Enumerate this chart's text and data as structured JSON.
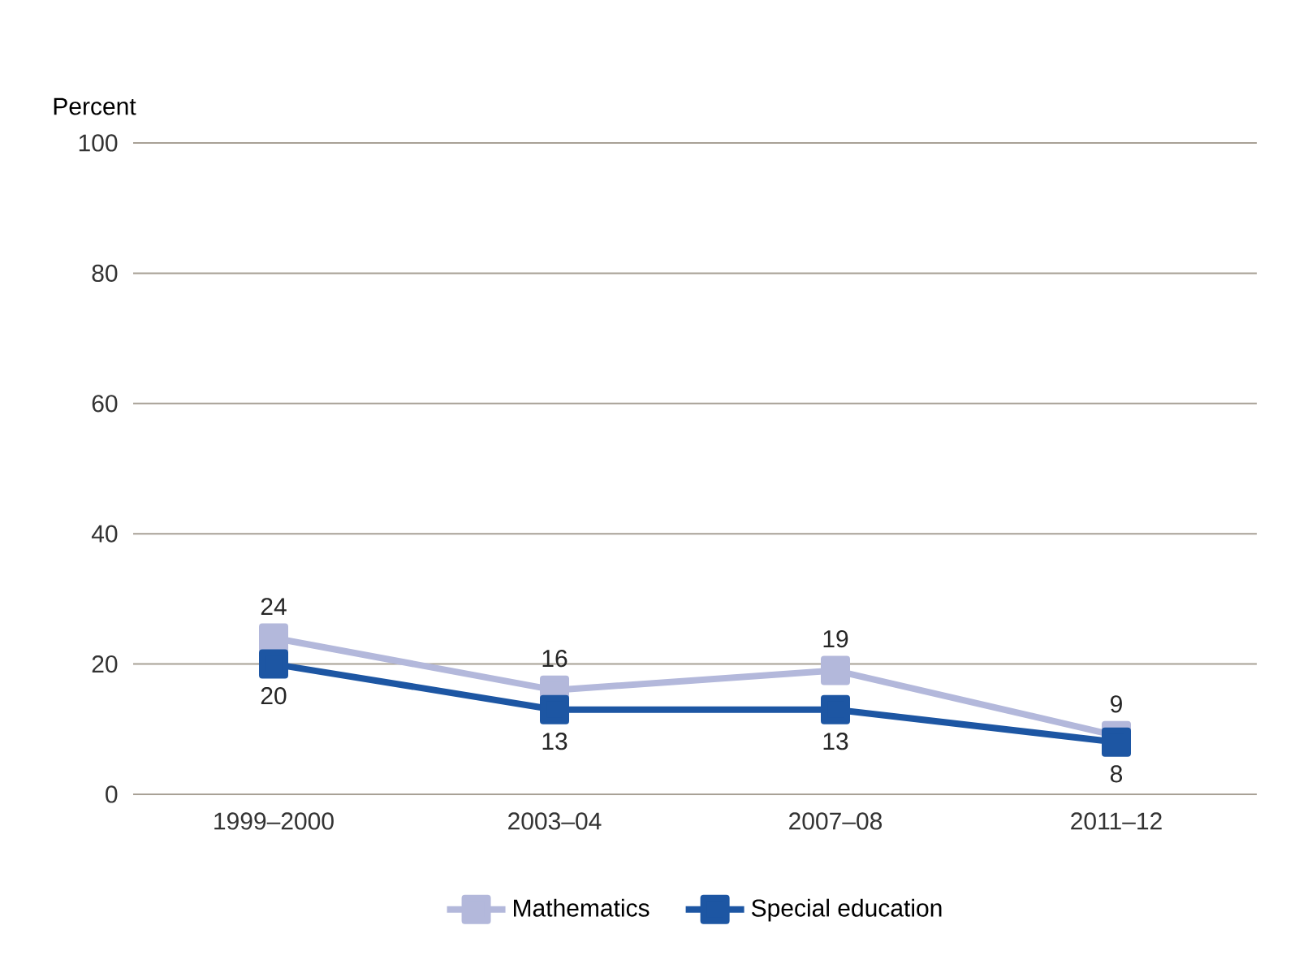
{
  "chart_data": {
    "type": "line",
    "ylabel": "Percent",
    "categories": [
      "1999–2000",
      "2003–04",
      "2007–08",
      "2011–12"
    ],
    "series": [
      {
        "name": "Mathematics",
        "color": "#b3b8db",
        "values": [
          24,
          16,
          19,
          9
        ]
      },
      {
        "name": "Special education",
        "color": "#1d56a3",
        "values": [
          20,
          13,
          13,
          8
        ]
      }
    ],
    "ylim": [
      0,
      100
    ],
    "yticks": [
      0,
      20,
      40,
      60,
      80,
      100
    ],
    "grid": "y",
    "legend": "bottom",
    "marker": "square",
    "line_style": "solid",
    "data_labels": true
  }
}
